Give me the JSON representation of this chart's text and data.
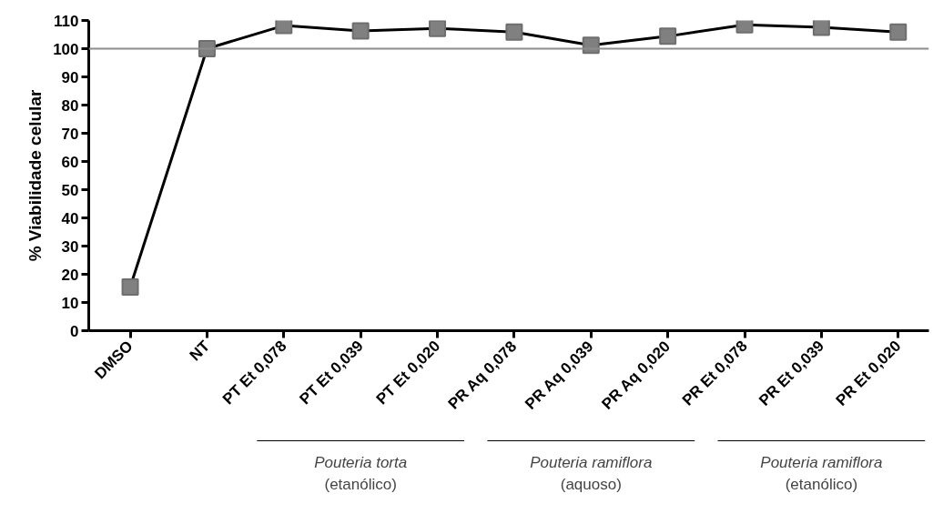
{
  "chart_data": {
    "type": "line",
    "ylabel": "% Viabilidade celular",
    "categories": [
      "DMSO",
      "NT",
      "PT Et 0,078",
      "PT Et 0,039",
      "PT Et 0,020",
      "PR Aq 0,078",
      "PR Aq 0,039",
      "PR Aq 0,020",
      "PR Et 0,078",
      "PR Et 0,039",
      "PR Et 0,020"
    ],
    "series": [
      {
        "color": "#000000",
        "values": [
          15.5,
          100,
          108.2,
          106.3,
          107.2,
          105.9,
          101.2,
          104.4,
          108.5,
          107.6,
          105.9
        ]
      }
    ],
    "marker": "square",
    "line_style": "solid",
    "ylim": [
      0,
      110
    ],
    "yticks": [
      0,
      10,
      20,
      30,
      40,
      50,
      60,
      70,
      80,
      90,
      100,
      110
    ],
    "grid": false,
    "ref_lines": [
      {
        "axis": "y",
        "value": 100,
        "color": "#8c8c8c"
      }
    ],
    "annotations": [
      "Pouteria torta",
      "(etanólico)",
      "Pouteria ramiflora",
      "(aquoso)",
      "Pouteria ramiflora",
      "(etanólico)"
    ]
  }
}
